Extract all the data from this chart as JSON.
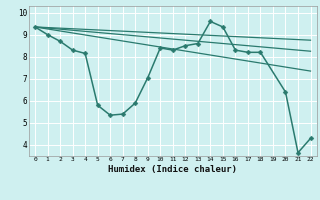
{
  "xlabel": "Humidex (Indice chaleur)",
  "background_color": "#cff0f0",
  "grid_color": "#ffffff",
  "line_color": "#2a7a6e",
  "xlim": [
    -0.5,
    22.5
  ],
  "ylim": [
    3.5,
    10.3
  ],
  "yticks": [
    4,
    5,
    6,
    7,
    8,
    9,
    10
  ],
  "xticks": [
    0,
    1,
    2,
    3,
    4,
    5,
    6,
    7,
    8,
    9,
    10,
    11,
    12,
    13,
    14,
    15,
    16,
    17,
    18,
    19,
    20,
    21,
    22
  ],
  "series": [
    {
      "x": [
        0,
        1,
        2,
        3,
        4,
        5,
        6,
        7,
        8,
        9,
        10,
        11,
        12,
        13,
        14,
        15,
        16,
        17,
        18,
        20,
        21,
        22
      ],
      "y": [
        9.35,
        9.0,
        8.7,
        8.3,
        8.15,
        5.8,
        5.35,
        5.4,
        5.9,
        7.05,
        8.4,
        8.3,
        8.5,
        8.6,
        9.6,
        9.35,
        8.3,
        8.2,
        8.2,
        6.4,
        3.65,
        4.3
      ],
      "has_marker": true,
      "markersize": 2.5,
      "linewidth": 1.1
    },
    {
      "x": [
        0,
        22
      ],
      "y": [
        9.35,
        7.35
      ],
      "has_marker": false,
      "linewidth": 0.9
    },
    {
      "x": [
        0,
        22
      ],
      "y": [
        9.35,
        8.25
      ],
      "has_marker": false,
      "linewidth": 0.9
    },
    {
      "x": [
        0,
        22
      ],
      "y": [
        9.35,
        8.75
      ],
      "has_marker": false,
      "linewidth": 0.9
    }
  ]
}
